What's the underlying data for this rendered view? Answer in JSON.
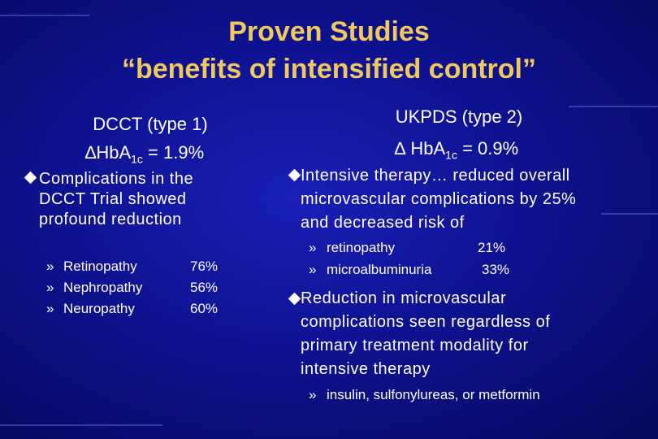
{
  "title": [
    "Proven Studies",
    "“benefits of intensified control”"
  ],
  "left": {
    "heading": "DCCT (type 1)",
    "delta": [
      "∆HbA",
      "1c",
      " = 1.9%"
    ],
    "bullet": [
      "Complications in the",
      "DCCT Trial showed",
      "profound reduction"
    ],
    "items": [
      [
        "Retinopathy",
        "76%"
      ],
      [
        "Nephropathy",
        "56%"
      ],
      [
        "Neuropathy",
        "60%"
      ]
    ]
  },
  "right": {
    "heading": "UKPDS (type 2)",
    "delta": [
      "∆ HbA",
      "1c",
      " = 0.9%"
    ],
    "bullet1": [
      "Intensive therapy… reduced overall",
      "microvascular complications by 25%",
      "and  decreased risk of"
    ],
    "items": [
      [
        "retinopathy",
        "21%"
      ],
      [
        "microalbuminuria",
        "33%"
      ]
    ],
    "bullet2": [
      "Reduction in microvascular",
      "complications  seen regardless of",
      "primary treatment modality for",
      "intensive therapy"
    ],
    "subitem": "insulin, sulfonylureas, or metformin"
  }
}
